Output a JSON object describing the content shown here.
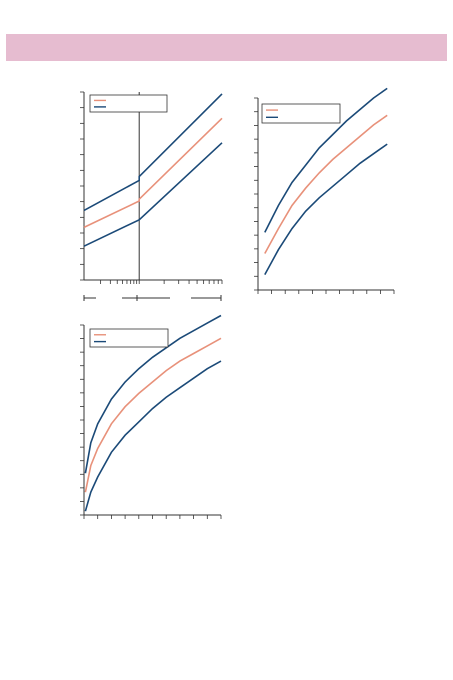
{
  "banner": {
    "text": ""
  },
  "colors": {
    "median": "#e8917a",
    "band": "#1b4a78",
    "banner": "#e6bcd0"
  },
  "chart_data": [
    {
      "type": "line",
      "id": "chart-a",
      "title": "",
      "xlabel": "",
      "ylabel": "",
      "xlim": [
        0,
        10
      ],
      "ylim": [
        0,
        10
      ],
      "yticks": 12,
      "xticks": 10,
      "xtick_style": "log",
      "divider_x": 4.0,
      "legend": {
        "placement": "top-left",
        "entries": [
          "",
          ""
        ]
      },
      "series": [
        {
          "role": "upper",
          "x": [
            0,
            4.0,
            4.0,
            10
          ],
          "y": [
            3.7,
            5.3,
            5.5,
            9.9
          ]
        },
        {
          "role": "median",
          "x": [
            0,
            4.0,
            4.0,
            10
          ],
          "y": [
            2.8,
            4.2,
            4.3,
            8.6
          ]
        },
        {
          "role": "lower",
          "x": [
            0,
            4.0,
            4.0,
            10
          ],
          "y": [
            1.8,
            3.2,
            3.2,
            7.3
          ]
        }
      ]
    },
    {
      "type": "line",
      "id": "chart-b",
      "title": "",
      "xlabel": "",
      "ylabel": "",
      "xlim": [
        0,
        10
      ],
      "ylim": [
        0,
        10
      ],
      "yticks": 14,
      "xticks": 10,
      "legend": {
        "placement": "top-left",
        "entries": [
          "",
          ""
        ]
      },
      "series": [
        {
          "role": "upper",
          "x": [
            0.5,
            1.5,
            2.5,
            3.5,
            4.5,
            5.5,
            6.5,
            7.5,
            8.5,
            9.5
          ],
          "y": [
            3.0,
            4.4,
            5.6,
            6.5,
            7.4,
            8.1,
            8.8,
            9.4,
            10.0,
            10.5
          ]
        },
        {
          "role": "median",
          "x": [
            0.5,
            1.5,
            2.5,
            3.5,
            4.5,
            5.5,
            6.5,
            7.5,
            8.5,
            9.5
          ],
          "y": [
            1.9,
            3.2,
            4.4,
            5.3,
            6.1,
            6.8,
            7.4,
            8.0,
            8.6,
            9.1
          ]
        },
        {
          "role": "lower",
          "x": [
            0.5,
            1.5,
            2.5,
            3.5,
            4.5,
            5.5,
            6.5,
            7.5,
            8.5,
            9.5
          ],
          "y": [
            0.8,
            2.1,
            3.2,
            4.1,
            4.8,
            5.4,
            6.0,
            6.6,
            7.1,
            7.6
          ]
        }
      ]
    },
    {
      "type": "line",
      "id": "chart-c",
      "title": "",
      "xlabel": "",
      "ylabel": "",
      "xlim": [
        0,
        10
      ],
      "ylim": [
        0,
        10
      ],
      "yticks": 14,
      "xticks": 10,
      "legend": {
        "placement": "top-left",
        "entries": [
          "",
          ""
        ]
      },
      "series": [
        {
          "role": "upper",
          "x": [
            0.1,
            0.5,
            1,
            2,
            3,
            4,
            5,
            6,
            7,
            8,
            9,
            10
          ],
          "y": [
            2.2,
            3.8,
            4.8,
            6.1,
            7.0,
            7.7,
            8.3,
            8.8,
            9.3,
            9.7,
            10.1,
            10.5
          ]
        },
        {
          "role": "median",
          "x": [
            0.1,
            0.5,
            1,
            2,
            3,
            4,
            5,
            6,
            7,
            8,
            9,
            10
          ],
          "y": [
            1.2,
            2.6,
            3.5,
            4.8,
            5.7,
            6.4,
            7.0,
            7.6,
            8.1,
            8.5,
            8.9,
            9.3
          ]
        },
        {
          "role": "lower",
          "x": [
            0.1,
            0.5,
            1,
            2,
            3,
            4,
            5,
            6,
            7,
            8,
            9,
            10
          ],
          "y": [
            0.2,
            1.2,
            2.0,
            3.3,
            4.2,
            4.9,
            5.6,
            6.2,
            6.7,
            7.2,
            7.7,
            8.1
          ]
        }
      ]
    }
  ]
}
